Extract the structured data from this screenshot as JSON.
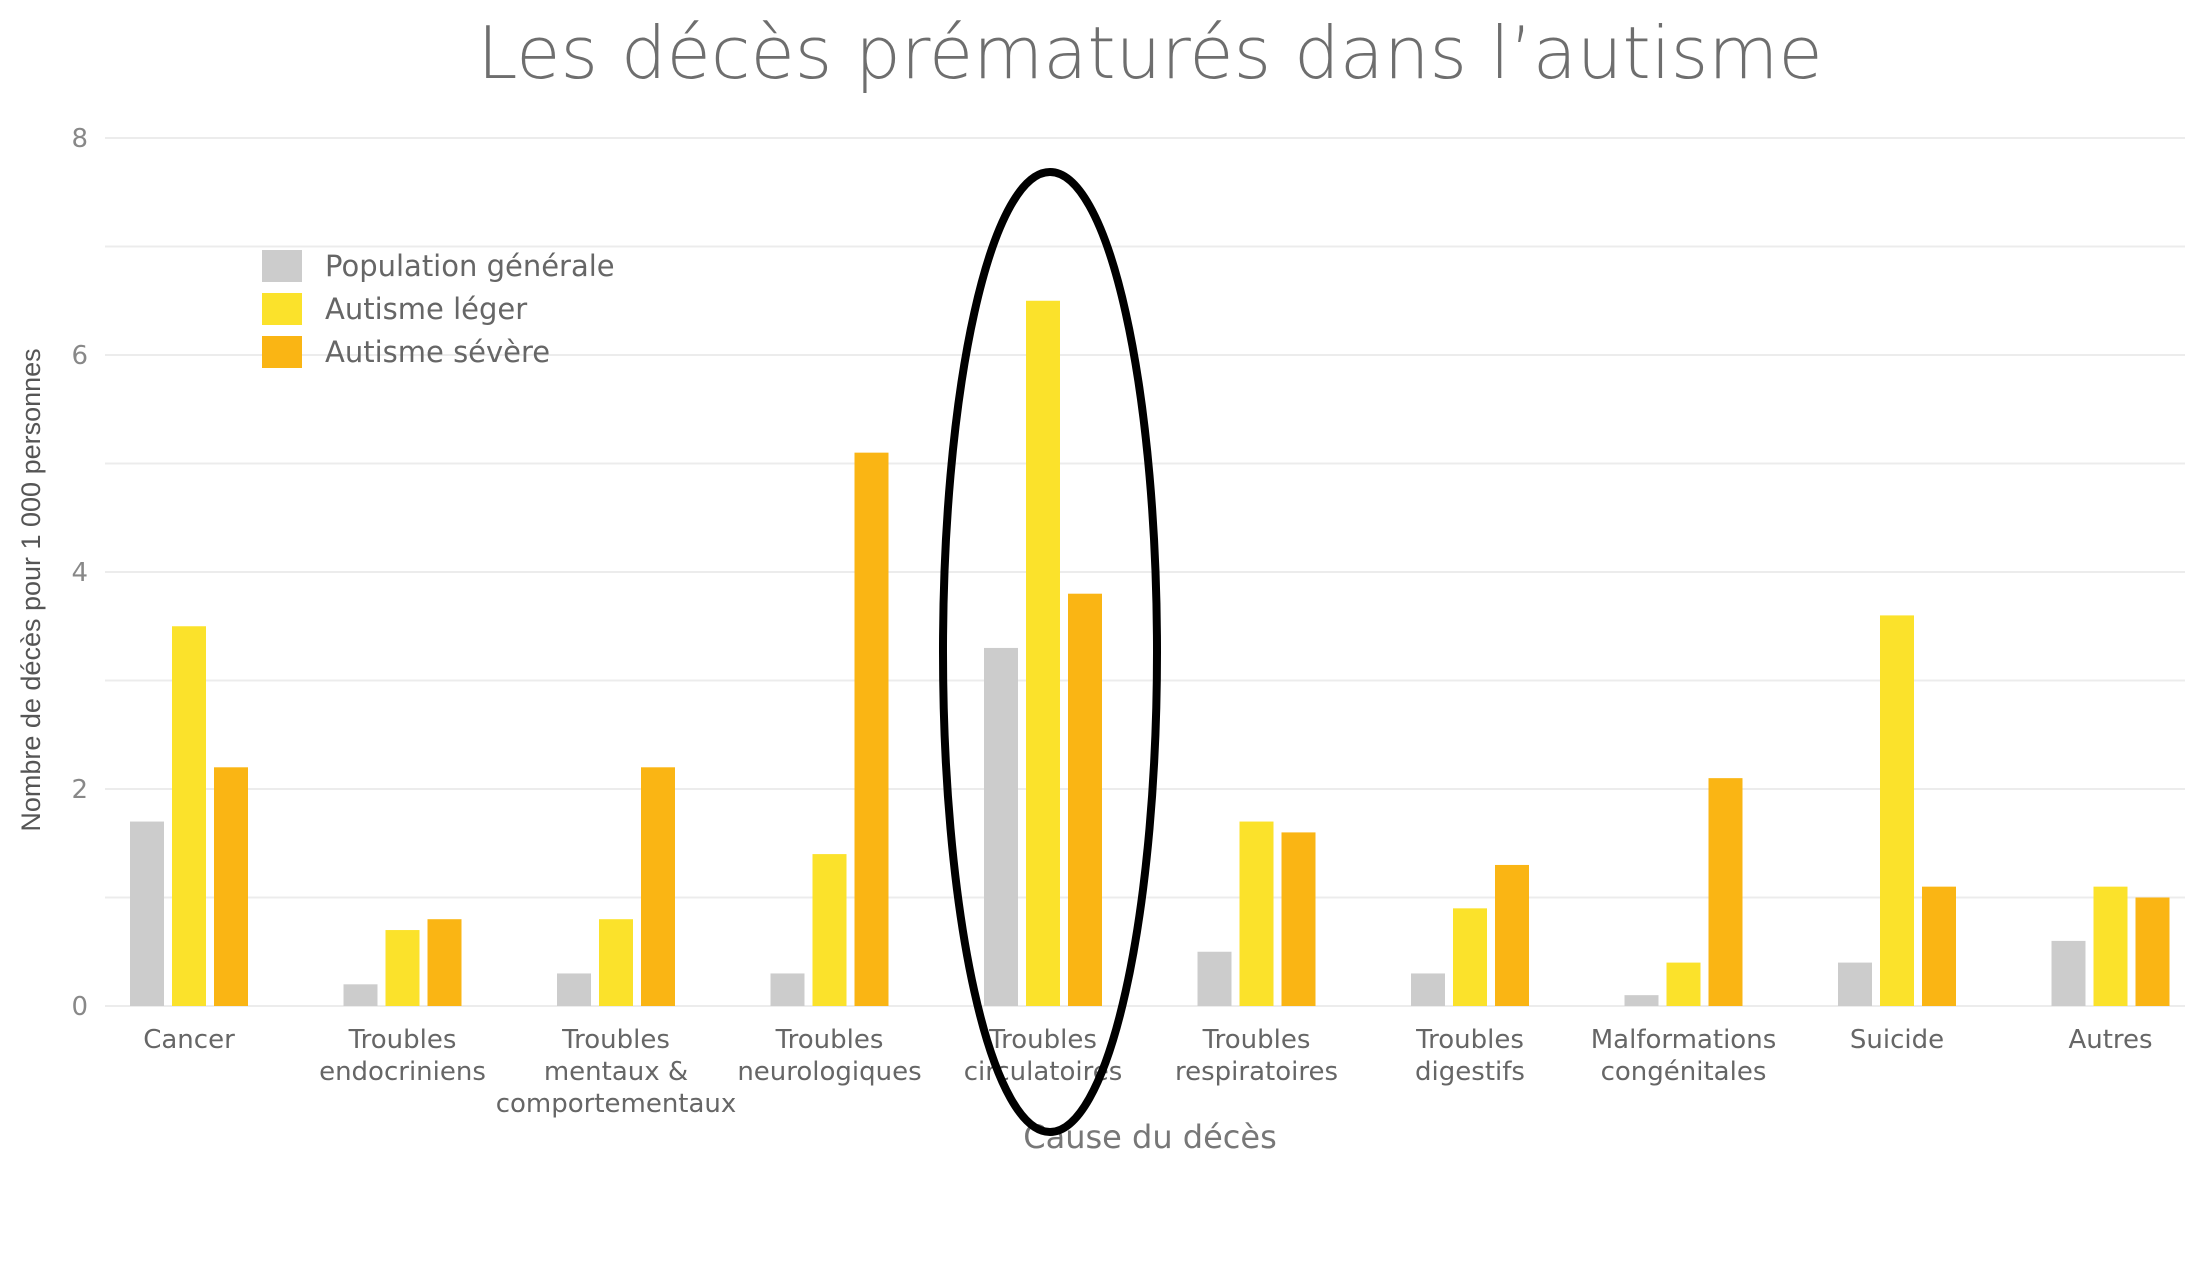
{
  "chart_data": {
    "type": "bar",
    "title": "Les décès prématurés dans l’autisme",
    "xlabel": "Cause du décès",
    "ylabel": "Nombre de décès pour 1 000 personnes",
    "ylim": [
      0,
      8
    ],
    "yticks": [
      0,
      2,
      4,
      6,
      8
    ],
    "grid": true,
    "legend_position": "top-left",
    "categories": [
      [
        "Cancer"
      ],
      [
        "Troubles",
        "endocriniens"
      ],
      [
        "Troubles",
        "mentaux &",
        "comportementaux"
      ],
      [
        "Troubles",
        "neurologiques"
      ],
      [
        "Troubles",
        "circulatoires"
      ],
      [
        "Troubles",
        "respiratoires"
      ],
      [
        "Troubles",
        "digestifs"
      ],
      [
        "Malformations",
        "congénitales"
      ],
      [
        "Suicide"
      ],
      [
        "Autres"
      ]
    ],
    "series": [
      {
        "name": "Population générale",
        "color": "#cccccc",
        "values": [
          1.7,
          0.2,
          0.3,
          0.3,
          3.3,
          0.5,
          0.3,
          0.1,
          0.4,
          0.6
        ]
      },
      {
        "name": "Autisme léger",
        "color": "#fbe22b",
        "values": [
          3.5,
          0.7,
          0.8,
          1.4,
          6.5,
          1.7,
          0.9,
          0.4,
          3.6,
          1.1
        ]
      },
      {
        "name": "Autisme sévère",
        "color": "#fab514",
        "values": [
          2.2,
          0.8,
          2.2,
          5.1,
          3.8,
          1.6,
          1.3,
          2.1,
          1.1,
          1.0
        ]
      }
    ],
    "highlight": {
      "category_index": 4,
      "shape": "ellipse",
      "color": "#000000"
    }
  }
}
